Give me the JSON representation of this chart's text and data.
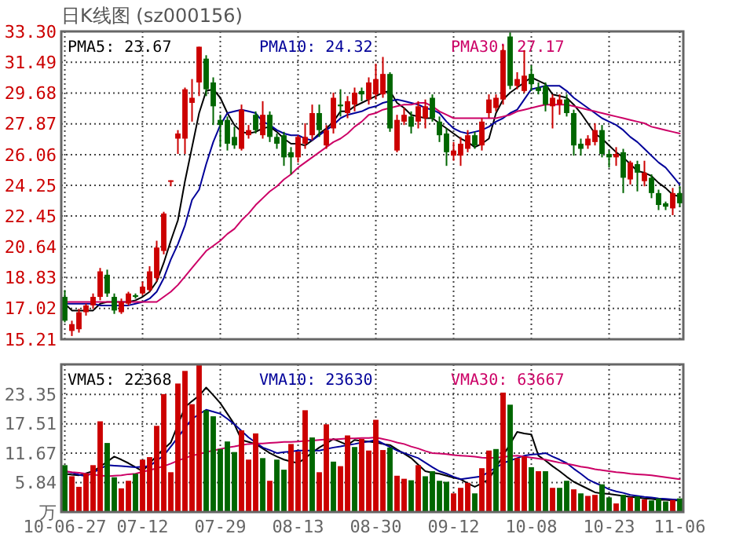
{
  "chart_data": [
    {
      "type": "candlestick",
      "title": "日K线图 (sz000156)",
      "tick_labels": "y",
      "grid": true,
      "categories": [
        null,
        null,
        null,
        null,
        null,
        null,
        null,
        null,
        null,
        null,
        null,
        null,
        null,
        null,
        null,
        null,
        null,
        null,
        null,
        null,
        null,
        null,
        null,
        null,
        null,
        null,
        null,
        null,
        null,
        null,
        null,
        null,
        null,
        null,
        null,
        null,
        null,
        null,
        null,
        null,
        null,
        null,
        null,
        null,
        null,
        null,
        null,
        null,
        null,
        null,
        null,
        null,
        null,
        null,
        null,
        null,
        null,
        null,
        null,
        null,
        null,
        null,
        null,
        null,
        null,
        null,
        null,
        null,
        null,
        null,
        null,
        null,
        null,
        null,
        null,
        null,
        null,
        null,
        null,
        null,
        null,
        null,
        null,
        null,
        null,
        null,
        null,
        null
      ],
      "ylim": [
        15.21,
        33.3
      ],
      "yticks": [
        15.21,
        17.02,
        18.83,
        20.64,
        22.45,
        24.25,
        26.06,
        27.87,
        29.68,
        31.49,
        {
          "value": 33.3,
          "label": "33.30"
        }
      ],
      "ohlc": [
        [
          17.7,
          18.1,
          16.2,
          16.3
        ],
        [
          15.7,
          16.3,
          15.4,
          16.1
        ],
        [
          15.8,
          17.0,
          15.6,
          16.8
        ],
        [
          16.8,
          17.3,
          16.6,
          17.2
        ],
        [
          17.2,
          17.9,
          17.0,
          17.7
        ],
        [
          17.7,
          19.4,
          17.5,
          19.2
        ],
        [
          19.0,
          19.3,
          17.7,
          17.9
        ],
        [
          17.7,
          17.9,
          16.7,
          16.9
        ],
        [
          16.8,
          17.6,
          16.7,
          17.4
        ],
        [
          17.3,
          18.0,
          17.2,
          17.9
        ],
        [
          17.8,
          17.9,
          17.6,
          17.7
        ],
        [
          17.9,
          18.6,
          17.8,
          18.3
        ],
        [
          18.1,
          19.5,
          18.0,
          19.2
        ],
        [
          18.8,
          21.0,
          18.6,
          20.6
        ],
        [
          20.4,
          22.7,
          20.2,
          22.6
        ],
        [
          24.5,
          24.55,
          24.2,
          24.55
        ],
        [
          27.0,
          27.5,
          26.1,
          27.3
        ],
        [
          27.0,
          30.0,
          26.1,
          29.9
        ],
        [
          29.1,
          30.5,
          28.0,
          29.4
        ],
        [
          30.3,
          32.4,
          29.5,
          32.4
        ],
        [
          31.7,
          31.9,
          29.5,
          29.9
        ],
        [
          30.3,
          30.6,
          27.8,
          28.9
        ],
        [
          28.1,
          28.4,
          26.5,
          27.8
        ],
        [
          28.1,
          28.3,
          26.3,
          26.7
        ],
        [
          27.1,
          27.7,
          26.4,
          26.6
        ],
        [
          26.4,
          29.0,
          26.3,
          28.7
        ],
        [
          27.2,
          27.8,
          27.0,
          27.5
        ],
        [
          28.4,
          28.6,
          27.3,
          27.5
        ],
        [
          27.2,
          29.2,
          27.0,
          28.4
        ],
        [
          28.4,
          28.6,
          26.8,
          27.1
        ],
        [
          27.1,
          27.3,
          26.4,
          26.7
        ],
        [
          27.2,
          27.4,
          25.4,
          25.9
        ],
        [
          26.2,
          26.5,
          24.9,
          25.9
        ],
        [
          25.9,
          27.2,
          25.6,
          27.1
        ],
        [
          26.7,
          27.9,
          26.4,
          27.1
        ],
        [
          27.2,
          29.0,
          26.9,
          28.5
        ],
        [
          28.5,
          29.0,
          27.1,
          27.5
        ],
        [
          26.6,
          27.8,
          26.4,
          27.5
        ],
        [
          27.6,
          29.7,
          27.3,
          29.4
        ],
        [
          29.0,
          29.9,
          28.3,
          28.9
        ],
        [
          28.5,
          29.5,
          28.2,
          29.2
        ],
        [
          29.0,
          30.0,
          28.6,
          29.7
        ],
        [
          29.8,
          30.0,
          29.2,
          29.6
        ],
        [
          29.3,
          30.6,
          29.0,
          30.3
        ],
        [
          29.6,
          31.4,
          29.3,
          30.5
        ],
        [
          29.6,
          31.8,
          29.4,
          30.8
        ],
        [
          30.8,
          30.9,
          27.4,
          27.6
        ],
        [
          26.3,
          28.4,
          26.2,
          28.1
        ],
        [
          28.0,
          28.8,
          27.8,
          28.4
        ],
        [
          28.3,
          28.6,
          27.3,
          27.7
        ],
        [
          28.0,
          29.2,
          27.6,
          28.9
        ],
        [
          28.2,
          29.3,
          27.6,
          28.9
        ],
        [
          29.4,
          29.6,
          28.0,
          28.2
        ],
        [
          28.0,
          28.3,
          26.8,
          27.2
        ],
        [
          27.3,
          27.6,
          25.4,
          26.2
        ],
        [
          26.0,
          26.8,
          25.7,
          26.3
        ],
        [
          26.0,
          27.1,
          25.4,
          26.7
        ],
        [
          26.4,
          27.5,
          26.2,
          27.2
        ],
        [
          27.2,
          27.4,
          26.4,
          26.6
        ],
        [
          26.6,
          28.2,
          26.3,
          28.0
        ],
        [
          28.5,
          29.6,
          28.2,
          29.3
        ],
        [
          28.8,
          29.6,
          28.6,
          29.4
        ],
        [
          29.3,
          32.5,
          29.0,
          32.2
        ],
        [
          33.0,
          33.3,
          29.9,
          30.1
        ],
        [
          30.1,
          30.9,
          29.9,
          30.5
        ],
        [
          29.8,
          32.2,
          29.7,
          30.7
        ],
        [
          30.8,
          31.3,
          29.8,
          30.2
        ],
        [
          30.0,
          30.3,
          29.6,
          29.8
        ],
        [
          30.1,
          30.3,
          28.6,
          29.0
        ],
        [
          28.9,
          29.6,
          27.6,
          29.4
        ],
        [
          29.0,
          29.6,
          28.4,
          29.3
        ],
        [
          29.3,
          29.6,
          28.3,
          28.5
        ],
        [
          28.5,
          28.7,
          26.0,
          26.6
        ],
        [
          26.7,
          27.0,
          26.0,
          26.4
        ],
        [
          26.6,
          27.2,
          26.4,
          27.0
        ],
        [
          26.8,
          27.9,
          26.6,
          27.5
        ],
        [
          27.5,
          27.8,
          25.9,
          26.1
        ],
        [
          26.1,
          26.3,
          25.3,
          25.9
        ],
        [
          25.9,
          26.5,
          25.4,
          26.1
        ],
        [
          26.2,
          26.4,
          23.8,
          24.7
        ],
        [
          24.6,
          25.7,
          24.3,
          25.6
        ],
        [
          25.5,
          25.7,
          23.9,
          25.0
        ],
        [
          24.5,
          25.7,
          24.2,
          25.0
        ],
        [
          24.7,
          24.9,
          23.5,
          23.8
        ],
        [
          23.8,
          24.0,
          22.8,
          23.1
        ],
        [
          23.2,
          23.3,
          22.8,
          23.0
        ],
        [
          22.9,
          24.1,
          22.5,
          23.8
        ],
        [
          23.8,
          24.2,
          23.0,
          23.2
        ]
      ],
      "colors": [
        "#006600",
        "#cc0000",
        "#cc0000",
        "#cc0000",
        "#cc0000",
        "#cc0000",
        "#006600",
        "#006600",
        "#cc0000",
        "#cc0000",
        "#006600",
        "#cc0000",
        "#cc0000",
        "#cc0000",
        "#cc0000",
        "#cc0000",
        "#cc0000",
        "#cc0000",
        "#cc0000",
        "#cc0000",
        "#006600",
        "#006600",
        "#006600",
        "#006600",
        "#006600",
        "#cc0000",
        "#cc0000",
        "#006600",
        "#cc0000",
        "#006600",
        "#006600",
        "#006600",
        "#006600",
        "#cc0000",
        "#cc0000",
        "#cc0000",
        "#006600",
        "#cc0000",
        "#cc0000",
        "#006600",
        "#cc0000",
        "#cc0000",
        "#006600",
        "#cc0000",
        "#cc0000",
        "#cc0000",
        "#006600",
        "#cc0000",
        "#cc0000",
        "#006600",
        "#cc0000",
        "#cc0000",
        "#006600",
        "#006600",
        "#006600",
        "#cc0000",
        "#cc0000",
        "#cc0000",
        "#006600",
        "#cc0000",
        "#cc0000",
        "#cc0000",
        "#cc0000",
        "#006600",
        "#cc0000",
        "#cc0000",
        "#006600",
        "#006600",
        "#006600",
        "#cc0000",
        "#cc0000",
        "#006600",
        "#006600",
        "#006600",
        "#cc0000",
        "#cc0000",
        "#006600",
        "#006600",
        "#cc0000",
        "#006600",
        "#cc0000",
        "#006600",
        "#cc0000",
        "#006600",
        "#006600",
        "#006600",
        "#cc0000",
        "#006600"
      ],
      "series": [
        {
          "type": "line",
          "color": "#000000",
          "values": [
            17.3,
            16.9,
            16.9,
            16.9,
            16.9,
            17.3,
            17.4,
            17.4,
            17.4,
            17.4,
            17.5,
            17.7,
            18.0,
            18.6,
            19.7,
            21.0,
            22.2,
            24.5,
            26.5,
            28.5,
            29.8,
            29.9,
            29.4,
            28.5,
            27.8,
            27.4,
            27.3,
            27.4,
            27.6,
            27.7,
            27.4,
            27.0,
            26.7,
            26.7,
            26.6,
            26.9,
            27.3,
            27.6,
            28.0,
            28.6,
            28.6,
            28.9,
            29.1,
            29.3,
            29.5,
            29.7,
            29.8,
            29.1,
            28.8,
            28.4,
            28.3,
            28.2,
            28.2,
            27.9,
            27.6,
            27.3,
            27.0,
            26.8,
            26.5,
            26.7,
            27.0,
            28.5,
            29.3,
            29.7,
            30.0,
            30.3,
            30.6,
            30.4,
            30.2,
            29.6,
            29.5,
            29.4,
            29.0,
            28.5,
            27.9,
            27.3,
            27.0,
            26.6,
            26.2,
            25.9,
            25.5,
            25.1,
            25.0,
            24.8,
            24.4,
            24.1,
            23.7,
            23.6
          ]
        },
        {
          "type": "line",
          "color": "#000099",
          "values": [
            17.3,
            17.3,
            17.3,
            17.3,
            17.3,
            17.2,
            17.2,
            17.2,
            17.2,
            17.2,
            17.3,
            17.4,
            17.6,
            18.0,
            18.8,
            19.9,
            20.8,
            21.9,
            23.4,
            24.0,
            25.5,
            26.8,
            27.8,
            28.5,
            28.6,
            28.7,
            28.6,
            28.5,
            28.0,
            27.8,
            27.5,
            27.3,
            27.2,
            27.2,
            27.0,
            26.9,
            27.2,
            27.5,
            27.8,
            28.2,
            28.4,
            28.5,
            28.6,
            28.8,
            28.9,
            29.1,
            29.2,
            29.3,
            29.2,
            29.1,
            29.0,
            28.8,
            28.7,
            28.5,
            28.0,
            27.6,
            27.4,
            27.3,
            27.4,
            27.5,
            27.7,
            28.0,
            28.2,
            28.5,
            28.7,
            29.3,
            29.9,
            30.0,
            30.1,
            30.1,
            30.1,
            29.8,
            29.4,
            29.1,
            28.8,
            28.5,
            28.2,
            28.0,
            27.8,
            27.5,
            27.1,
            26.8,
            26.4,
            26.0,
            25.6,
            25.3,
            24.8,
            24.3
          ]
        },
        {
          "type": "line",
          "color": "#cc0066",
          "values": [
            17.4,
            17.4,
            17.4,
            17.4,
            17.4,
            17.4,
            17.4,
            17.4,
            17.4,
            17.4,
            17.4,
            17.4,
            17.4,
            17.4,
            17.7,
            18.0,
            18.4,
            18.9,
            19.4,
            19.9,
            20.4,
            20.7,
            21.0,
            21.4,
            21.7,
            22.2,
            22.6,
            23.1,
            23.5,
            23.9,
            24.2,
            24.6,
            24.9,
            25.3,
            25.6,
            25.9,
            26.2,
            26.5,
            26.8,
            27.0,
            27.3,
            27.7,
            28.0,
            28.4,
            28.5,
            28.7,
            28.8,
            28.9,
            29.0,
            29.0,
            29.1,
            29.1,
            28.9,
            28.6,
            28.4,
            28.2,
            28.2,
            28.2,
            28.2,
            28.2,
            28.2,
            28.2,
            28.3,
            28.4,
            28.6,
            28.7,
            28.8,
            28.9,
            29.0,
            29.0,
            29.0,
            29.0,
            28.9,
            28.8,
            28.7,
            28.6,
            28.5,
            28.4,
            28.3,
            28.2,
            28.1,
            28.0,
            27.9,
            27.7,
            27.6,
            27.5,
            27.4,
            27.3
          ]
        }
      ],
      "annotations": [
        "PMA5: 23.67",
        "PMA10: 24.32",
        "PMA30: 27.17"
      ]
    },
    {
      "type": "bar",
      "grid": true,
      "categories": [
        "10-06-27",
        null,
        null,
        null,
        null,
        null,
        null,
        null,
        null,
        null,
        null,
        "07-12",
        null,
        null,
        null,
        null,
        null,
        null,
        null,
        null,
        null,
        null,
        "07-29",
        null,
        null,
        null,
        null,
        null,
        null,
        null,
        null,
        null,
        null,
        "08-13",
        null,
        null,
        null,
        null,
        null,
        null,
        null,
        null,
        null,
        null,
        "08-30",
        null,
        null,
        null,
        null,
        null,
        null,
        null,
        null,
        null,
        null,
        "09-12",
        null,
        null,
        null,
        null,
        null,
        null,
        null,
        null,
        null,
        null,
        "10-08",
        null,
        null,
        null,
        null,
        null,
        null,
        null,
        null,
        null,
        null,
        "10-23",
        null,
        null,
        null,
        null,
        null,
        null,
        null,
        null,
        null,
        "11-06"
      ],
      "ylim": [
        0,
        29.3
      ],
      "yticks": [
        {
          "value": 0,
          "label": "万"
        },
        5.84,
        11.67,
        17.51,
        23.35
      ],
      "values": [
        9.3,
        7.1,
        5.0,
        7.6,
        9.3,
        18.0,
        13.7,
        6.9,
        4.7,
        6.2,
        7.6,
        10.4,
        10.9,
        17.1,
        23.4,
        7.9,
        25.5,
        28.0,
        21.4,
        29.2,
        20.2,
        19.0,
        12.5,
        14.0,
        11.9,
        16.2,
        10.4,
        15.6,
        10.7,
        6.2,
        10.4,
        8.4,
        13.5,
        12.0,
        20.2,
        14.8,
        7.9,
        17.4,
        10.0,
        9.1,
        15.2,
        12.9,
        14.5,
        12.2,
        18.3,
        12.3,
        12.8,
        7.2,
        6.6,
        6.3,
        9.3,
        7.1,
        8.1,
        6.2,
        6.0,
        3.7,
        4.8,
        5.8,
        3.7,
        8.7,
        12.2,
        12.5,
        23.7,
        21.3,
        10.7,
        11.0,
        8.9,
        8.1,
        8.1,
        4.8,
        4.8,
        6.2,
        4.5,
        3.7,
        3.2,
        3.4,
        5.5,
        2.9,
        1.7,
        3.4,
        2.9,
        3.1,
        2.5,
        2.3,
        2.7,
        2.1,
        2.4,
        2.7
      ],
      "colors": [
        "#006600",
        "#cc0000",
        "#cc0000",
        "#cc0000",
        "#cc0000",
        "#cc0000",
        "#006600",
        "#006600",
        "#cc0000",
        "#cc0000",
        "#006600",
        "#cc0000",
        "#cc0000",
        "#cc0000",
        "#cc0000",
        "#cc0000",
        "#cc0000",
        "#cc0000",
        "#cc0000",
        "#cc0000",
        "#006600",
        "#006600",
        "#006600",
        "#006600",
        "#006600",
        "#cc0000",
        "#cc0000",
        "#cc0000",
        "#006600",
        "#cc0000",
        "#006600",
        "#006600",
        "#cc0000",
        "#cc0000",
        "#cc0000",
        "#006600",
        "#cc0000",
        "#cc0000",
        "#006600",
        "#cc0000",
        "#cc0000",
        "#006600",
        "#cc0000",
        "#cc0000",
        "#cc0000",
        "#cc0000",
        "#006600",
        "#cc0000",
        "#cc0000",
        "#006600",
        "#cc0000",
        "#006600",
        "#006600",
        "#006600",
        "#006600",
        "#cc0000",
        "#cc0000",
        "#cc0000",
        "#006600",
        "#cc0000",
        "#cc0000",
        "#006600",
        "#cc0000",
        "#006600",
        "#cc0000",
        "#cc0000",
        "#006600",
        "#cc0000",
        "#006600",
        "#cc0000",
        "#006600",
        "#006600",
        "#cc0000",
        "#006600",
        "#cc0000",
        "#cc0000",
        "#006600",
        "#006600",
        "#cc0000",
        "#006600",
        "#cc0000",
        "#006600",
        "#cc0000",
        "#006600",
        "#006600",
        "#006600",
        "#cc0000",
        "#006600"
      ],
      "series": [
        {
          "type": "line",
          "color": "#000000",
          "values": [
            7.6,
            7.4,
            7.3,
            7.7,
            8.1,
            9.0,
            10.0,
            11.0,
            10.4,
            9.7,
            8.9,
            8.1,
            9.6,
            11.2,
            12.5,
            13.8,
            17.3,
            20.8,
            22.0,
            23.1,
            24.7,
            23.2,
            21.6,
            19.5,
            17.4,
            14.3,
            13.9,
            13.5,
            12.6,
            11.7,
            11.0,
            10.4,
            10.0,
            9.7,
            10.7,
            11.8,
            12.8,
            13.6,
            14.5,
            13.9,
            13.3,
            14.3,
            14.1,
            14.0,
            13.8,
            13.5,
            13.3,
            12.4,
            11.6,
            10.7,
            9.4,
            8.1,
            7.8,
            7.6,
            7.2,
            6.8,
            6.5,
            5.7,
            5.0,
            5.7,
            6.5,
            8.8,
            11.2,
            13.5,
            15.9,
            15.6,
            15.4,
            11.2,
            10.2,
            9.1,
            8.1,
            7.0,
            6.0,
            5.3,
            4.6,
            3.9,
            3.7,
            3.6,
            3.4,
            3.2,
            3.0,
            2.9,
            2.7,
            2.6,
            2.4,
            2.4,
            2.3,
            2.3
          ]
        },
        {
          "type": "line",
          "color": "#000099",
          "values": [
            8.1,
            7.8,
            7.4,
            7.1,
            7.8,
            8.6,
            9.3,
            9.2,
            9.1,
            9.0,
            8.9,
            9.0,
            9.1,
            10.2,
            11.2,
            13.0,
            14.8,
            16.7,
            18.5,
            19.4,
            20.3,
            19.9,
            19.5,
            18.5,
            17.4,
            16.1,
            14.8,
            13.8,
            12.8,
            12.3,
            11.7,
            11.9,
            12.0,
            12.2,
            12.2,
            12.2,
            12.2,
            12.5,
            12.8,
            13.0,
            13.3,
            13.5,
            13.8,
            14.0,
            14.3,
            13.6,
            12.9,
            12.2,
            11.7,
            11.2,
            10.7,
            9.8,
            8.9,
            8.1,
            7.6,
            7.0,
            6.5,
            6.7,
            6.9,
            7.1,
            8.0,
            8.8,
            9.7,
            10.2,
            10.7,
            11.2,
            11.4,
            11.5,
            11.7,
            11.0,
            10.4,
            9.7,
            8.6,
            7.6,
            6.5,
            5.8,
            5.2,
            4.5,
            4.1,
            3.8,
            3.4,
            3.2,
            3.0,
            2.9,
            2.7,
            2.6,
            2.5,
            2.4
          ]
        },
        {
          "type": "line",
          "color": "#cc0066",
          "values": [
            8.1,
            7.9,
            7.8,
            7.6,
            7.4,
            7.3,
            7.1,
            7.2,
            7.3,
            7.5,
            7.6,
            8.0,
            8.3,
            8.7,
            9.1,
            9.6,
            10.2,
            10.7,
            11.2,
            11.5,
            11.9,
            12.2,
            12.5,
            12.8,
            13.0,
            13.3,
            13.5,
            13.6,
            13.6,
            13.7,
            13.8,
            13.9,
            13.9,
            14.0,
            14.1,
            14.2,
            14.3,
            14.4,
            14.4,
            14.5,
            14.6,
            14.6,
            14.7,
            14.7,
            14.8,
            14.5,
            14.2,
            13.8,
            13.5,
            13.0,
            12.6,
            12.1,
            11.7,
            11.6,
            11.5,
            11.3,
            11.2,
            11.1,
            11.0,
            10.8,
            10.7,
            10.8,
            10.9,
            11.1,
            11.2,
            11.0,
            10.8,
            10.6,
            10.4,
            10.1,
            9.8,
            9.6,
            9.3,
            9.0,
            8.8,
            8.5,
            8.3,
            8.1,
            7.9,
            7.8,
            7.6,
            7.5,
            7.4,
            7.3,
            7.1,
            6.9,
            6.7,
            6.5
          ]
        }
      ],
      "annotations": [
        "VMA5: 22368",
        "VMA10: 23630",
        "VMA30: 63667"
      ]
    }
  ]
}
